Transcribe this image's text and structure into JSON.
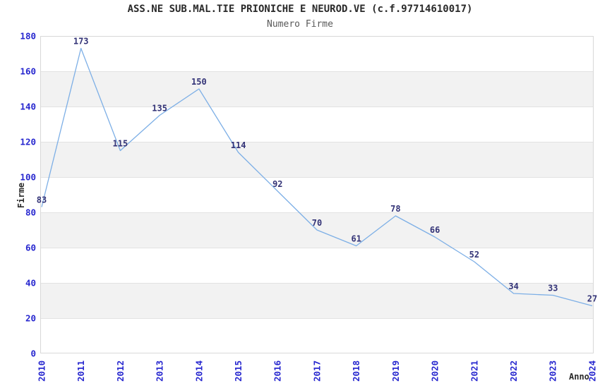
{
  "chart_data": {
    "type": "line",
    "title": "ASS.NE SUB.MAL.TIE PRIONICHE E NEUROD.VE (c.f.97714610017)",
    "subtitle": "Numero Firme",
    "xlabel": "Anno",
    "ylabel": "Firme",
    "categories": [
      "2010",
      "2011",
      "2012",
      "2013",
      "2014",
      "2015",
      "2016",
      "2017",
      "2018",
      "2019",
      "2020",
      "2021",
      "2022",
      "2023",
      "2024"
    ],
    "values": [
      83,
      173,
      115,
      135,
      150,
      114,
      92,
      70,
      61,
      78,
      66,
      52,
      34,
      33,
      27
    ],
    "series": [
      {
        "name": "Numero Firme",
        "values": [
          83,
          173,
          115,
          135,
          150,
          114,
          92,
          70,
          61,
          78,
          66,
          52,
          34,
          33,
          27
        ]
      }
    ],
    "ylim": [
      0,
      180
    ],
    "ytick_step": 20,
    "yticks": [
      0,
      20,
      40,
      60,
      80,
      100,
      120,
      140,
      160,
      180
    ],
    "grid": "alternating-horizontal-bands",
    "gray_bands": [
      [
        20,
        40
      ],
      [
        60,
        80
      ],
      [
        100,
        120
      ],
      [
        140,
        160
      ]
    ],
    "legend": "none",
    "point_labels_shown": true,
    "x_tick_rotation_deg": -90,
    "colors": {
      "line": "#7dafe6",
      "axis_tick_label": "#2727cf",
      "point_label": "#333377",
      "band": "#f2f2f2",
      "band_edge": "#e2e2e2",
      "plot_border": "#d8d8d8",
      "title": "#2a2a2a",
      "subtitle": "#595959",
      "background": "#ffffff"
    }
  }
}
